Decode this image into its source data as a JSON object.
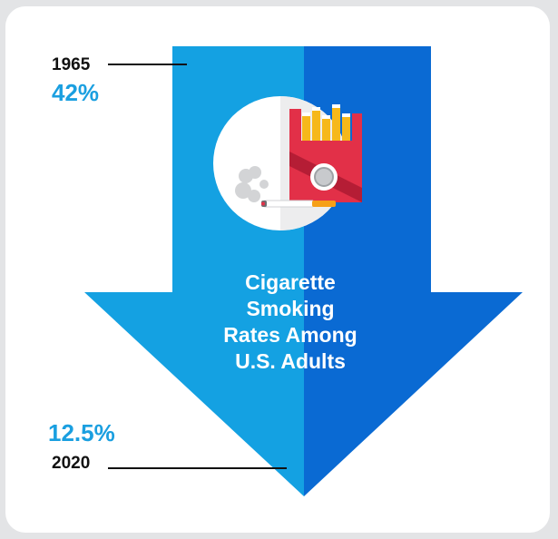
{
  "title_lines": [
    "Cigarette",
    "Smoking",
    "Rates Among",
    "U.S. Adults"
  ],
  "start": {
    "year": "1965",
    "value": "42%"
  },
  "end": {
    "year": "2020",
    "value": "12.5%"
  },
  "colors": {
    "background": "#e3e4e6",
    "card": "#ffffff",
    "arrow_left": "#14a1e2",
    "arrow_right": "#0a6ad3",
    "accent_text": "#1a9fe0",
    "year_text": "#111111",
    "pack_red": "#e23048",
    "pack_dark_red": "#b51d35",
    "cigarette_yellow": "#f6b81a"
  },
  "icons": {
    "center": "cigarette-pack-icon",
    "smoke": "smoke-icon",
    "cigarette": "cigarette-icon"
  }
}
